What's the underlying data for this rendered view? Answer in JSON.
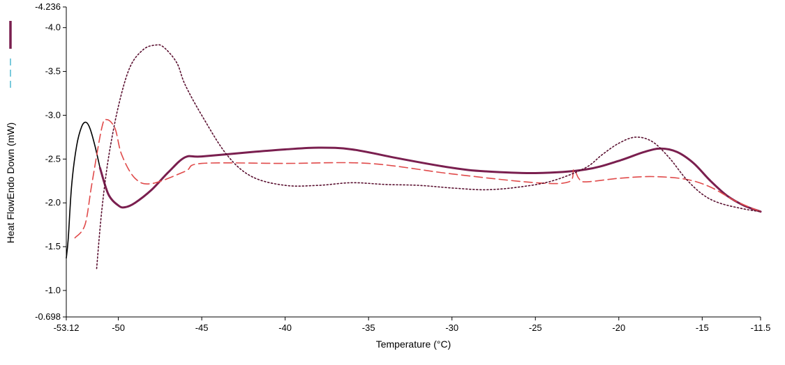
{
  "chart_data": {
    "type": "line",
    "xlabel": "Temperature (°C)",
    "ylabel": "Heat FlowEndo Down (mW)",
    "xlim": [
      -53.12,
      -11.5
    ],
    "ylim": [
      -0.698,
      -4.236
    ],
    "y_axis_inverted": true,
    "x_ticks": [
      "-53.12",
      "-50",
      "-45",
      "-40",
      "-35",
      "-30",
      "-25",
      "-20",
      "-15",
      "-11.5"
    ],
    "y_ticks": [
      "-4.236",
      "-4.0",
      "-3.5",
      "-3.0",
      "-2.5",
      "-2.0",
      "-1.5",
      "-1.0",
      "-0.698"
    ],
    "legend": {
      "placement": "left-of-axis"
    },
    "series": [
      {
        "style": "solid-thin",
        "color": "#000000",
        "x": [
          -53.12,
          -53.0,
          -52.8,
          -52.5,
          -52.2,
          -51.95,
          -51.7,
          -51.4,
          -51.1
        ],
        "y": [
          -1.37,
          -1.6,
          -2.2,
          -2.65,
          -2.87,
          -2.92,
          -2.85,
          -2.65,
          -2.4
        ]
      },
      {
        "style": "solid-thick",
        "color": "#7a1f4f",
        "x": [
          -51.1,
          -50.6,
          -50.0,
          -49.6,
          -49.0,
          -48.0,
          -47.0,
          -46.0,
          -45.0,
          -42.0,
          -40.0,
          -38.0,
          -36.0,
          -33.0,
          -30.0,
          -28.0,
          -25.0,
          -22.0,
          -20.0,
          -18.5,
          -17.5,
          -16.5,
          -15.5,
          -14.5,
          -13.5,
          -12.5,
          -11.5
        ],
        "y": [
          -2.4,
          -2.1,
          -1.97,
          -1.95,
          -2.0,
          -2.15,
          -2.35,
          -2.52,
          -2.53,
          -2.58,
          -2.61,
          -2.63,
          -2.61,
          -2.5,
          -2.4,
          -2.36,
          -2.34,
          -2.38,
          -2.48,
          -2.58,
          -2.62,
          -2.58,
          -2.45,
          -2.25,
          -2.08,
          -1.97,
          -1.9
        ]
      },
      {
        "style": "dashed",
        "color": "#e04a4a",
        "x": [
          -52.6,
          -52.0,
          -51.6,
          -51.0,
          -50.7,
          -50.2,
          -49.8,
          -49.0,
          -48.0,
          -46.0,
          -45.0,
          -40.0,
          -35.0,
          -30.0,
          -25.0,
          -23.0,
          -22.7,
          -22.4,
          -22.0,
          -20.0,
          -18.0,
          -16.0,
          -14.5,
          -13.0,
          -11.5
        ],
        "y": [
          -1.6,
          -1.75,
          -2.2,
          -2.85,
          -2.95,
          -2.85,
          -2.55,
          -2.28,
          -2.22,
          -2.36,
          -2.45,
          -2.45,
          -2.45,
          -2.33,
          -2.23,
          -2.24,
          -2.38,
          -2.28,
          -2.24,
          -2.28,
          -2.3,
          -2.27,
          -2.18,
          -2.02,
          -1.9
        ]
      },
      {
        "style": "dotted",
        "color": "#5a1030",
        "x": [
          -51.3,
          -51.0,
          -50.6,
          -50.0,
          -49.3,
          -48.5,
          -47.8,
          -47.3,
          -46.5,
          -46.0,
          -45.0,
          -43.5,
          -42.0,
          -40.0,
          -38.0,
          -36.0,
          -34.0,
          -32.0,
          -30.0,
          -28.0,
          -26.0,
          -24.0,
          -22.0,
          -21.0,
          -20.0,
          -19.0,
          -18.0,
          -17.0,
          -16.0,
          -15.0,
          -14.0,
          -12.5,
          -11.5
        ],
        "y": [
          -1.25,
          -1.9,
          -2.5,
          -3.1,
          -3.55,
          -3.75,
          -3.8,
          -3.78,
          -3.6,
          -3.35,
          -3.0,
          -2.55,
          -2.3,
          -2.2,
          -2.2,
          -2.23,
          -2.21,
          -2.2,
          -2.17,
          -2.15,
          -2.18,
          -2.25,
          -2.4,
          -2.55,
          -2.68,
          -2.75,
          -2.7,
          -2.52,
          -2.28,
          -2.1,
          -2.0,
          -1.93,
          -1.9
        ]
      }
    ]
  }
}
